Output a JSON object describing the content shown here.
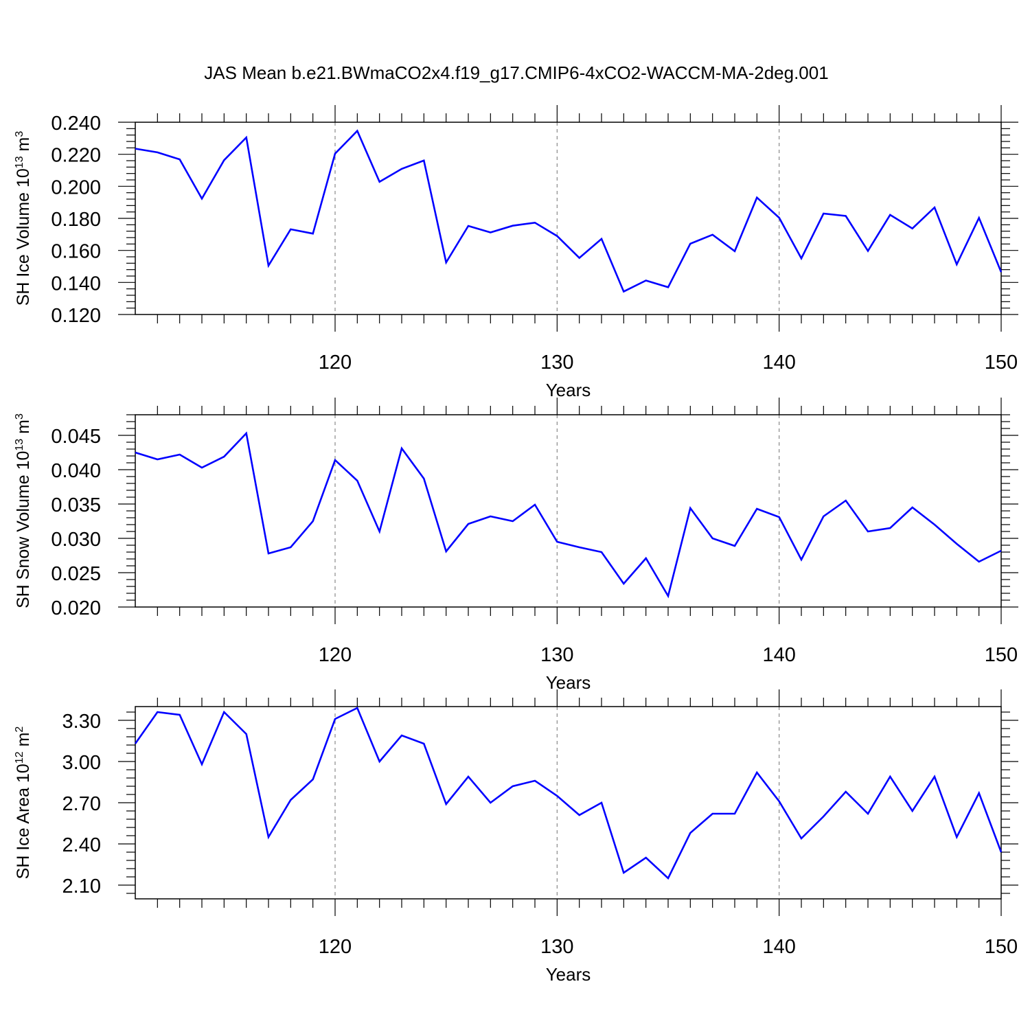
{
  "title": "JAS Mean b.e21.BWmaCO2x4.f19_g17.CMIP6-4xCO2-WACCM-MA-2deg.001",
  "style": {
    "line_color": "#0000ff",
    "axis_color": "#000000",
    "grid_color": "#888888"
  },
  "chart_data": [
    {
      "type": "line",
      "ylabel": {
        "main": "SH Ice Volume 10",
        "sup": "13",
        "unit": " m",
        "unit_sup": "3"
      },
      "xlabel": "Years",
      "xlim": [
        111,
        150
      ],
      "ylim": [
        0.12,
        0.24
      ],
      "yticks": [
        0.12,
        0.14,
        0.16,
        0.18,
        0.2,
        0.22,
        0.24
      ],
      "yticklabels": [
        "0.120",
        "0.140",
        "0.160",
        "0.180",
        "0.200",
        "0.220",
        "0.240"
      ],
      "xticks": [
        120,
        130,
        140,
        150
      ],
      "xticklabels": [
        "120",
        "130",
        "140",
        "150"
      ],
      "grid": "vertical dashed at major x ticks",
      "x": [
        111,
        112,
        113,
        114,
        115,
        116,
        117,
        118,
        119,
        120,
        121,
        122,
        123,
        124,
        125,
        126,
        127,
        128,
        129,
        130,
        131,
        132,
        133,
        134,
        135,
        136,
        137,
        138,
        139,
        140,
        141,
        142,
        143,
        144,
        145,
        146,
        147,
        148,
        149,
        150
      ],
      "values": [
        0.2235,
        0.2212,
        0.2168,
        0.1923,
        0.2163,
        0.2305,
        0.1505,
        0.1732,
        0.1705,
        0.2204,
        0.2346,
        0.2028,
        0.2109,
        0.2161,
        0.1525,
        0.1753,
        0.1712,
        0.1754,
        0.1773,
        0.169,
        0.1553,
        0.1672,
        0.1343,
        0.1412,
        0.137,
        0.1642,
        0.1698,
        0.1595,
        0.193,
        0.1804,
        0.155,
        0.183,
        0.1815,
        0.1597,
        0.1822,
        0.1737,
        0.1868,
        0.1513,
        0.1803,
        0.1465
      ]
    },
    {
      "type": "line",
      "ylabel": {
        "main": "SH Snow Volume 10",
        "sup": "13",
        "unit": " m",
        "unit_sup": "3"
      },
      "xlabel": "Years",
      "xlim": [
        111,
        150
      ],
      "ylim": [
        0.02,
        0.048
      ],
      "yticks": [
        0.02,
        0.025,
        0.03,
        0.035,
        0.04,
        0.045
      ],
      "yticklabels": [
        "0.020",
        "0.025",
        "0.030",
        "0.035",
        "0.040",
        "0.045"
      ],
      "xticks": [
        120,
        130,
        140,
        150
      ],
      "xticklabels": [
        "120",
        "130",
        "140",
        "150"
      ],
      "grid": "vertical dashed at major x ticks",
      "x": [
        111,
        112,
        113,
        114,
        115,
        116,
        117,
        118,
        119,
        120,
        121,
        122,
        123,
        124,
        125,
        126,
        127,
        128,
        129,
        130,
        131,
        132,
        133,
        134,
        135,
        136,
        137,
        138,
        139,
        140,
        141,
        142,
        143,
        144,
        145,
        146,
        147,
        148,
        149,
        150
      ],
      "values": [
        0.0425,
        0.0415,
        0.0422,
        0.0403,
        0.0419,
        0.0453,
        0.0278,
        0.0287,
        0.0325,
        0.0414,
        0.0384,
        0.031,
        0.0431,
        0.0387,
        0.0281,
        0.0321,
        0.0332,
        0.0325,
        0.0349,
        0.0295,
        0.0287,
        0.028,
        0.0234,
        0.0271,
        0.0216,
        0.0344,
        0.03,
        0.0289,
        0.0343,
        0.0331,
        0.0269,
        0.0332,
        0.0355,
        0.031,
        0.0315,
        0.0345,
        0.032,
        0.0292,
        0.0266,
        0.0282
      ]
    },
    {
      "type": "line",
      "ylabel": {
        "main": "SH Ice Area 10",
        "sup": "12",
        "unit": " m",
        "unit_sup": "2"
      },
      "xlabel": "Years",
      "xlim": [
        111,
        150
      ],
      "ylim": [
        2.0,
        3.4
      ],
      "yticks": [
        2.1,
        2.4,
        2.7,
        3.0,
        3.3
      ],
      "yticklabels": [
        "2.10",
        "2.40",
        "2.70",
        "3.00",
        "3.30"
      ],
      "xticks": [
        120,
        130,
        140,
        150
      ],
      "xticklabels": [
        "120",
        "130",
        "140",
        "150"
      ],
      "grid": "vertical dashed at major x ticks",
      "x": [
        111,
        112,
        113,
        114,
        115,
        116,
        117,
        118,
        119,
        120,
        121,
        122,
        123,
        124,
        125,
        126,
        127,
        128,
        129,
        130,
        131,
        132,
        133,
        134,
        135,
        136,
        137,
        138,
        139,
        140,
        141,
        142,
        143,
        144,
        145,
        146,
        147,
        148,
        149,
        150
      ],
      "values": [
        3.13,
        3.36,
        3.34,
        2.98,
        3.36,
        3.2,
        2.45,
        2.72,
        2.87,
        3.31,
        3.39,
        3.0,
        3.19,
        3.13,
        2.69,
        2.89,
        2.7,
        2.82,
        2.86,
        2.75,
        2.61,
        2.7,
        2.19,
        2.3,
        2.15,
        2.48,
        2.62,
        2.62,
        2.92,
        2.71,
        2.44,
        2.6,
        2.78,
        2.62,
        2.89,
        2.64,
        2.89,
        2.45,
        2.77,
        2.34
      ]
    }
  ]
}
